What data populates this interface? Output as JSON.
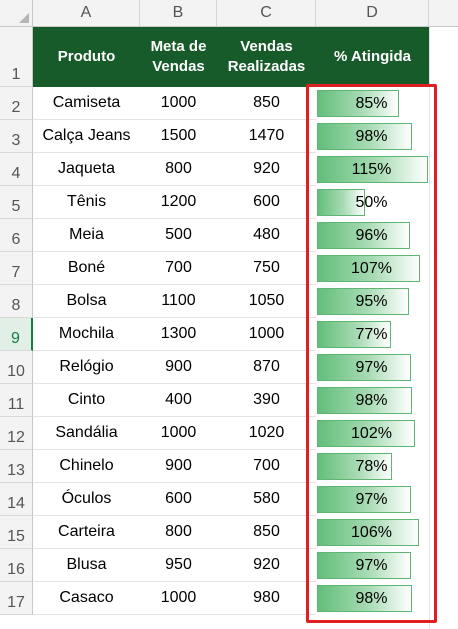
{
  "columns": [
    "A",
    "B",
    "C",
    "D"
  ],
  "headers": {
    "produto": "Produto",
    "meta": "Meta de Vendas",
    "vendas": "Vendas Realizadas",
    "pct": "% Atingida"
  },
  "row_numbers": [
    "1",
    "2",
    "3",
    "4",
    "5",
    "6",
    "7",
    "8",
    "9",
    "10",
    "11",
    "12",
    "13",
    "14",
    "15",
    "16",
    "17"
  ],
  "selected_row": "9",
  "rows": [
    {
      "produto": "Camiseta",
      "meta": "1000",
      "vendas": "850",
      "pct": "85%",
      "frac": 0.85
    },
    {
      "produto": "Calça Jeans",
      "meta": "1500",
      "vendas": "1470",
      "pct": "98%",
      "frac": 0.98
    },
    {
      "produto": "Jaqueta",
      "meta": "800",
      "vendas": "920",
      "pct": "115%",
      "frac": 1.15
    },
    {
      "produto": "Tênis",
      "meta": "1200",
      "vendas": "600",
      "pct": "50%",
      "frac": 0.5
    },
    {
      "produto": "Meia",
      "meta": "500",
      "vendas": "480",
      "pct": "96%",
      "frac": 0.96
    },
    {
      "produto": "Boné",
      "meta": "700",
      "vendas": "750",
      "pct": "107%",
      "frac": 1.07
    },
    {
      "produto": "Bolsa",
      "meta": "1100",
      "vendas": "1050",
      "pct": "95%",
      "frac": 0.95
    },
    {
      "produto": "Mochila",
      "meta": "1300",
      "vendas": "1000",
      "pct": "77%",
      "frac": 0.77
    },
    {
      "produto": "Relógio",
      "meta": "900",
      "vendas": "870",
      "pct": "97%",
      "frac": 0.97
    },
    {
      "produto": "Cinto",
      "meta": "400",
      "vendas": "390",
      "pct": "98%",
      "frac": 0.98
    },
    {
      "produto": "Sandália",
      "meta": "1000",
      "vendas": "1020",
      "pct": "102%",
      "frac": 1.02
    },
    {
      "produto": "Chinelo",
      "meta": "900",
      "vendas": "700",
      "pct": "78%",
      "frac": 0.78
    },
    {
      "produto": "Óculos",
      "meta": "600",
      "vendas": "580",
      "pct": "97%",
      "frac": 0.97
    },
    {
      "produto": "Carteira",
      "meta": "800",
      "vendas": "850",
      "pct": "106%",
      "frac": 1.06
    },
    {
      "produto": "Blusa",
      "meta": "950",
      "vendas": "920",
      "pct": "97%",
      "frac": 0.97
    },
    {
      "produto": "Casaco",
      "meta": "1000",
      "vendas": "980",
      "pct": "98%",
      "frac": 0.98
    }
  ],
  "colors": {
    "header_bg": "#175b2b",
    "bar_start": "#63be7b",
    "highlight_box": "#e02020"
  }
}
